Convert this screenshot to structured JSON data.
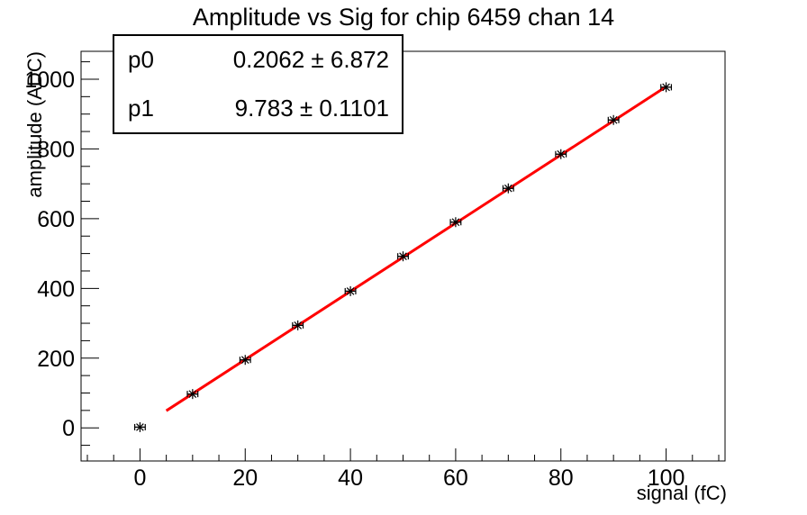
{
  "title": "Amplitude vs Sig for chip 6459 chan 14",
  "stats_box": {
    "rows": [
      {
        "name": "p0",
        "value": "0.2062 ± 6.872"
      },
      {
        "name": "p1",
        "value": "9.783 ± 0.1101"
      }
    ]
  },
  "chart_data": {
    "type": "scatter",
    "title": "Amplitude vs Sig for chip 6459 chan 14",
    "xlabel": "signal (fC)",
    "ylabel": "amplitude (ADC)",
    "x": [
      0,
      10,
      20,
      30,
      40,
      50,
      60,
      70,
      80,
      90,
      100
    ],
    "y": [
      2,
      97,
      195,
      294,
      392,
      492,
      590,
      687,
      785,
      883,
      977
    ],
    "x_error": 1,
    "marker": "asterisk",
    "marker_color": "#000000",
    "fit": {
      "label": "linear",
      "p0": 0.2062,
      "p1": 9.783,
      "x_range": [
        5,
        100
      ],
      "color": "#ff0000",
      "width": 3
    },
    "xlim": [
      -11.2,
      111.2
    ],
    "ylim": [
      -95,
      1080
    ],
    "x_major_ticks": [
      0,
      20,
      40,
      60,
      80,
      100
    ],
    "x_minor_step": 5,
    "y_major_ticks": [
      0,
      200,
      400,
      600,
      800,
      1000
    ],
    "y_minor_step": 50,
    "grid": false,
    "legend": false,
    "background": "#ffffff",
    "axis_color": "#000000"
  }
}
